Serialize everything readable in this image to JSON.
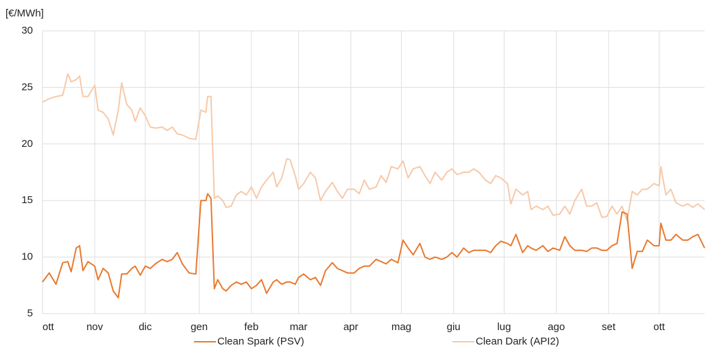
{
  "chart_data": {
    "type": "line",
    "y_label": "[€/MWh]",
    "grid": true,
    "legend": "bottom",
    "xlim": [
      0,
      393
    ],
    "xticks": [
      {
        "value": 0,
        "label": "ott"
      },
      {
        "value": 31,
        "label": "nov"
      },
      {
        "value": 61,
        "label": "dic"
      },
      {
        "value": 93,
        "label": "gen"
      },
      {
        "value": 124,
        "label": "feb"
      },
      {
        "value": 152,
        "label": "mar"
      },
      {
        "value": 183,
        "label": "apr"
      },
      {
        "value": 213,
        "label": "mag"
      },
      {
        "value": 244,
        "label": "giu"
      },
      {
        "value": 274,
        "label": "lug"
      },
      {
        "value": 305,
        "label": "ago"
      },
      {
        "value": 336,
        "label": "set"
      },
      {
        "value": 366,
        "label": "ott"
      }
    ],
    "ylim": [
      5,
      30
    ],
    "yticks": [
      5,
      10,
      15,
      20,
      25,
      30
    ],
    "x": [
      0,
      4,
      8,
      12,
      15,
      17,
      20,
      22,
      24,
      27,
      31,
      33,
      36,
      39,
      42,
      45,
      47,
      50,
      53,
      55,
      58,
      61,
      64,
      67,
      71,
      74,
      77,
      80,
      83,
      87,
      91,
      94,
      97,
      98,
      100,
      102,
      104,
      107,
      109,
      112,
      115,
      118,
      121,
      124,
      127,
      130,
      133,
      137,
      139,
      142,
      145,
      147,
      150,
      152,
      155,
      159,
      162,
      165,
      168,
      172,
      175,
      178,
      181,
      185,
      188,
      191,
      194,
      198,
      201,
      204,
      207,
      211,
      214,
      217,
      220,
      224,
      227,
      230,
      233,
      237,
      240,
      243,
      246,
      250,
      253,
      256,
      259,
      263,
      266,
      269,
      272,
      276,
      278,
      281,
      285,
      288,
      290,
      293,
      297,
      300,
      303,
      307,
      310,
      313,
      316,
      320,
      323,
      326,
      329,
      332,
      335,
      338,
      341,
      344,
      347,
      350,
      353,
      356,
      359,
      363,
      366,
      367,
      370,
      373,
      376,
      380,
      383,
      386,
      389,
      393
    ],
    "series": [
      {
        "name": "Clean Spark (PSV)",
        "color": "#e8792f",
        "values": [
          7.8,
          8.6,
          7.6,
          9.5,
          9.6,
          8.7,
          10.8,
          11.0,
          8.8,
          9.6,
          9.2,
          8.0,
          9.0,
          8.6,
          7.0,
          6.4,
          8.5,
          8.5,
          9.0,
          9.2,
          8.4,
          9.2,
          9.0,
          9.4,
          9.8,
          9.6,
          9.8,
          10.4,
          9.4,
          8.6,
          8.5,
          15.0,
          15.0,
          15.6,
          15.2,
          7.2,
          8.0,
          7.2,
          7.0,
          7.5,
          7.8,
          7.6,
          7.8,
          7.2,
          7.5,
          8.0,
          6.8,
          7.8,
          8.0,
          7.6,
          7.8,
          7.8,
          7.6,
          8.2,
          8.5,
          8.0,
          8.2,
          7.5,
          8.8,
          9.5,
          9.0,
          8.8,
          8.6,
          8.6,
          9.0,
          9.2,
          9.2,
          9.8,
          9.6,
          9.4,
          9.8,
          9.5,
          11.5,
          10.8,
          10.2,
          11.2,
          10.0,
          9.8,
          10.0,
          9.8,
          10.0,
          10.4,
          10.0,
          10.8,
          10.4,
          10.6,
          10.6,
          10.6,
          10.4,
          11.0,
          11.4,
          11.2,
          11.0,
          12.0,
          10.4,
          11.0,
          10.8,
          10.6,
          11.0,
          10.5,
          10.8,
          10.6,
          11.8,
          11.0,
          10.6,
          10.6,
          10.5,
          10.8,
          10.8,
          10.6,
          10.6,
          11.0,
          11.2,
          14.0,
          13.8,
          9.0,
          10.5,
          10.5,
          11.5,
          11.0,
          11.0,
          13.0,
          11.5,
          11.5,
          12.0,
          11.5,
          11.5,
          11.8,
          12.0,
          10.8
        ]
      },
      {
        "name": "Clean Dark (API2)",
        "color": "#f6c9a9",
        "values": [
          23.7,
          24.0,
          24.2,
          24.3,
          26.2,
          25.5,
          25.7,
          26.0,
          24.2,
          24.2,
          25.2,
          23.0,
          22.8,
          22.2,
          20.8,
          23.0,
          25.4,
          23.5,
          23.0,
          22.0,
          23.2,
          22.5,
          21.5,
          21.4,
          21.5,
          21.2,
          21.5,
          20.9,
          20.8,
          20.5,
          20.4,
          23.0,
          22.8,
          24.2,
          24.2,
          15.2,
          15.4,
          15.0,
          14.4,
          14.5,
          15.5,
          15.8,
          15.5,
          16.2,
          15.2,
          16.2,
          16.8,
          17.5,
          16.2,
          17.0,
          18.7,
          18.6,
          17.2,
          16.0,
          16.5,
          17.5,
          17.0,
          15.0,
          15.8,
          16.6,
          15.8,
          15.2,
          16.0,
          16.0,
          15.6,
          16.8,
          16.0,
          16.2,
          17.2,
          16.6,
          18.0,
          17.8,
          18.5,
          17.0,
          17.8,
          18.0,
          17.2,
          16.5,
          17.5,
          16.8,
          17.5,
          17.8,
          17.3,
          17.5,
          17.5,
          17.8,
          17.5,
          16.8,
          16.5,
          17.2,
          17.0,
          16.5,
          14.7,
          16.0,
          15.5,
          15.8,
          14.2,
          14.5,
          14.2,
          14.5,
          13.7,
          13.8,
          14.5,
          13.8,
          15.0,
          16.0,
          14.5,
          14.5,
          14.8,
          13.5,
          13.6,
          14.5,
          13.8,
          14.5,
          13.2,
          15.8,
          15.5,
          16.0,
          16.0,
          16.5,
          16.3,
          18.0,
          15.5,
          16.0,
          14.8,
          14.5,
          14.7,
          14.4,
          14.7,
          14.2
        ]
      }
    ]
  }
}
